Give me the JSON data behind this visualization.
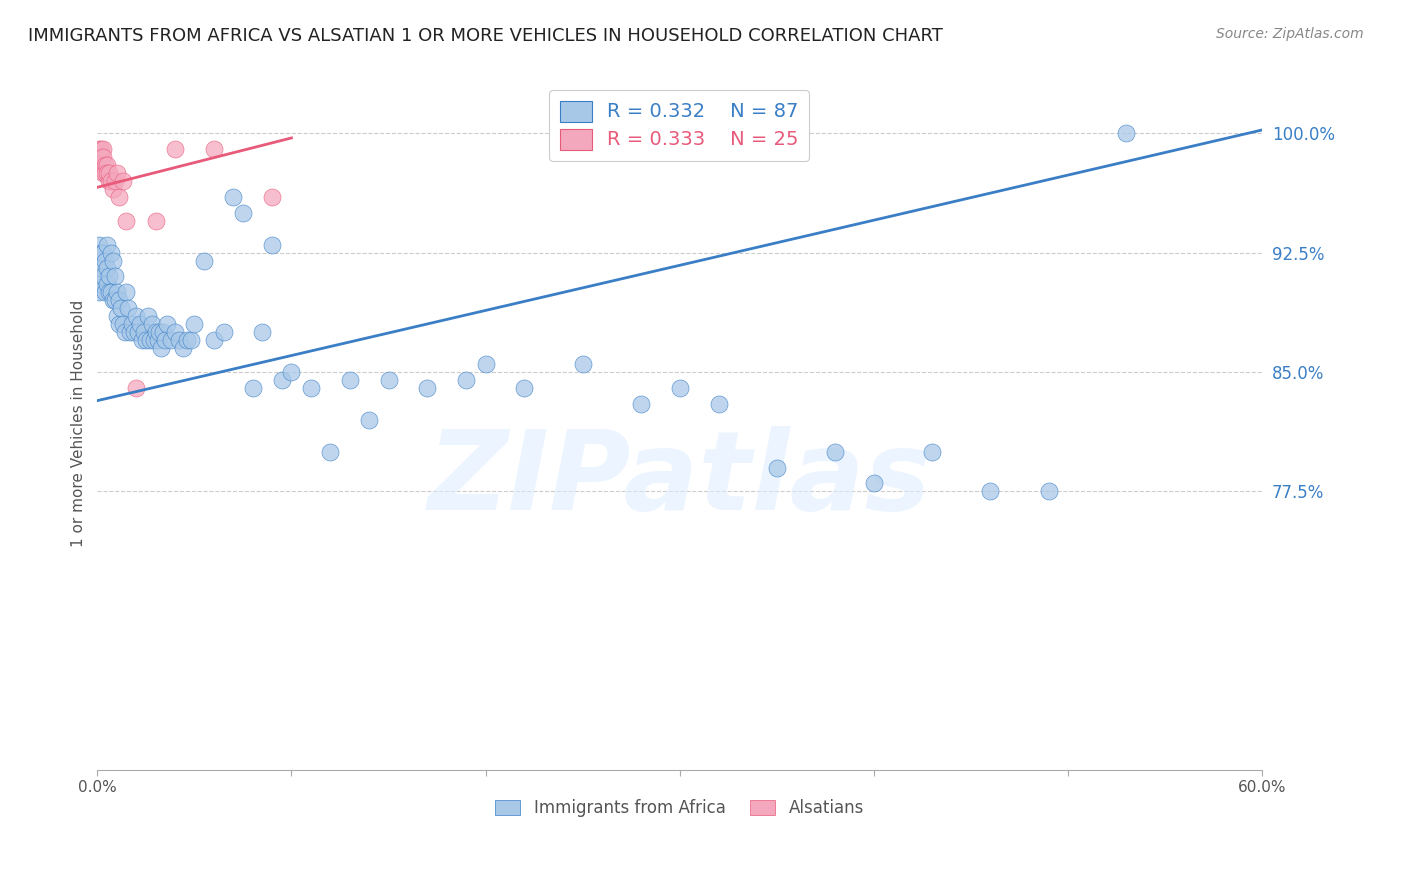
{
  "title": "IMMIGRANTS FROM AFRICA VS ALSATIAN 1 OR MORE VEHICLES IN HOUSEHOLD CORRELATION CHART",
  "source": "Source: ZipAtlas.com",
  "ylabel": "1 or more Vehicles in Household",
  "yticks": [
    0.775,
    0.85,
    0.925,
    1.0
  ],
  "ytick_labels": [
    "77.5%",
    "85.0%",
    "92.5%",
    "100.0%"
  ],
  "xmin": 0.0,
  "xmax": 0.6,
  "ymin": 0.6,
  "ymax": 1.035,
  "watermark": "ZIPatlas",
  "blue_color": "#A8C8E8",
  "pink_color": "#F4A8BE",
  "blue_line_color": "#3A7EC6",
  "pink_line_color": "#E85A7A",
  "blue_scatter_x": [
    0.001,
    0.001,
    0.001,
    0.002,
    0.002,
    0.002,
    0.003,
    0.003,
    0.004,
    0.004,
    0.005,
    0.005,
    0.005,
    0.006,
    0.006,
    0.007,
    0.007,
    0.008,
    0.008,
    0.009,
    0.009,
    0.01,
    0.01,
    0.011,
    0.011,
    0.012,
    0.013,
    0.014,
    0.015,
    0.016,
    0.017,
    0.018,
    0.019,
    0.02,
    0.021,
    0.022,
    0.023,
    0.024,
    0.025,
    0.026,
    0.027,
    0.028,
    0.029,
    0.03,
    0.031,
    0.032,
    0.033,
    0.034,
    0.035,
    0.036,
    0.038,
    0.04,
    0.042,
    0.044,
    0.046,
    0.048,
    0.05,
    0.055,
    0.06,
    0.065,
    0.07,
    0.075,
    0.08,
    0.085,
    0.09,
    0.095,
    0.1,
    0.11,
    0.12,
    0.13,
    0.14,
    0.15,
    0.17,
    0.19,
    0.2,
    0.22,
    0.25,
    0.28,
    0.3,
    0.32,
    0.35,
    0.38,
    0.4,
    0.43,
    0.46,
    0.49,
    0.53
  ],
  "blue_scatter_y": [
    0.93,
    0.91,
    0.9,
    0.925,
    0.915,
    0.905,
    0.925,
    0.91,
    0.92,
    0.9,
    0.93,
    0.915,
    0.905,
    0.91,
    0.9,
    0.925,
    0.9,
    0.92,
    0.895,
    0.91,
    0.895,
    0.9,
    0.885,
    0.895,
    0.88,
    0.89,
    0.88,
    0.875,
    0.9,
    0.89,
    0.875,
    0.88,
    0.875,
    0.885,
    0.875,
    0.88,
    0.87,
    0.875,
    0.87,
    0.885,
    0.87,
    0.88,
    0.87,
    0.875,
    0.87,
    0.875,
    0.865,
    0.875,
    0.87,
    0.88,
    0.87,
    0.875,
    0.87,
    0.865,
    0.87,
    0.87,
    0.88,
    0.92,
    0.87,
    0.875,
    0.96,
    0.95,
    0.84,
    0.875,
    0.93,
    0.845,
    0.85,
    0.84,
    0.8,
    0.845,
    0.82,
    0.845,
    0.84,
    0.845,
    0.855,
    0.84,
    0.855,
    0.83,
    0.84,
    0.83,
    0.79,
    0.8,
    0.78,
    0.8,
    0.775,
    0.775,
    1.0
  ],
  "pink_scatter_x": [
    0.001,
    0.001,
    0.002,
    0.002,
    0.003,
    0.003,
    0.003,
    0.004,
    0.004,
    0.005,
    0.005,
    0.006,
    0.006,
    0.007,
    0.008,
    0.009,
    0.01,
    0.011,
    0.013,
    0.015,
    0.02,
    0.03,
    0.04,
    0.06,
    0.09
  ],
  "pink_scatter_y": [
    0.99,
    0.985,
    0.99,
    0.985,
    0.99,
    0.985,
    0.975,
    0.98,
    0.975,
    0.98,
    0.975,
    0.97,
    0.975,
    0.97,
    0.965,
    0.97,
    0.975,
    0.96,
    0.97,
    0.945,
    0.84,
    0.945,
    0.99,
    0.99,
    0.96
  ],
  "blue_trend_x": [
    0.0,
    0.6
  ],
  "blue_trend_y": [
    0.832,
    1.002
  ],
  "pink_trend_x": [
    0.0,
    0.1
  ],
  "pink_trend_y": [
    0.966,
    0.997
  ]
}
